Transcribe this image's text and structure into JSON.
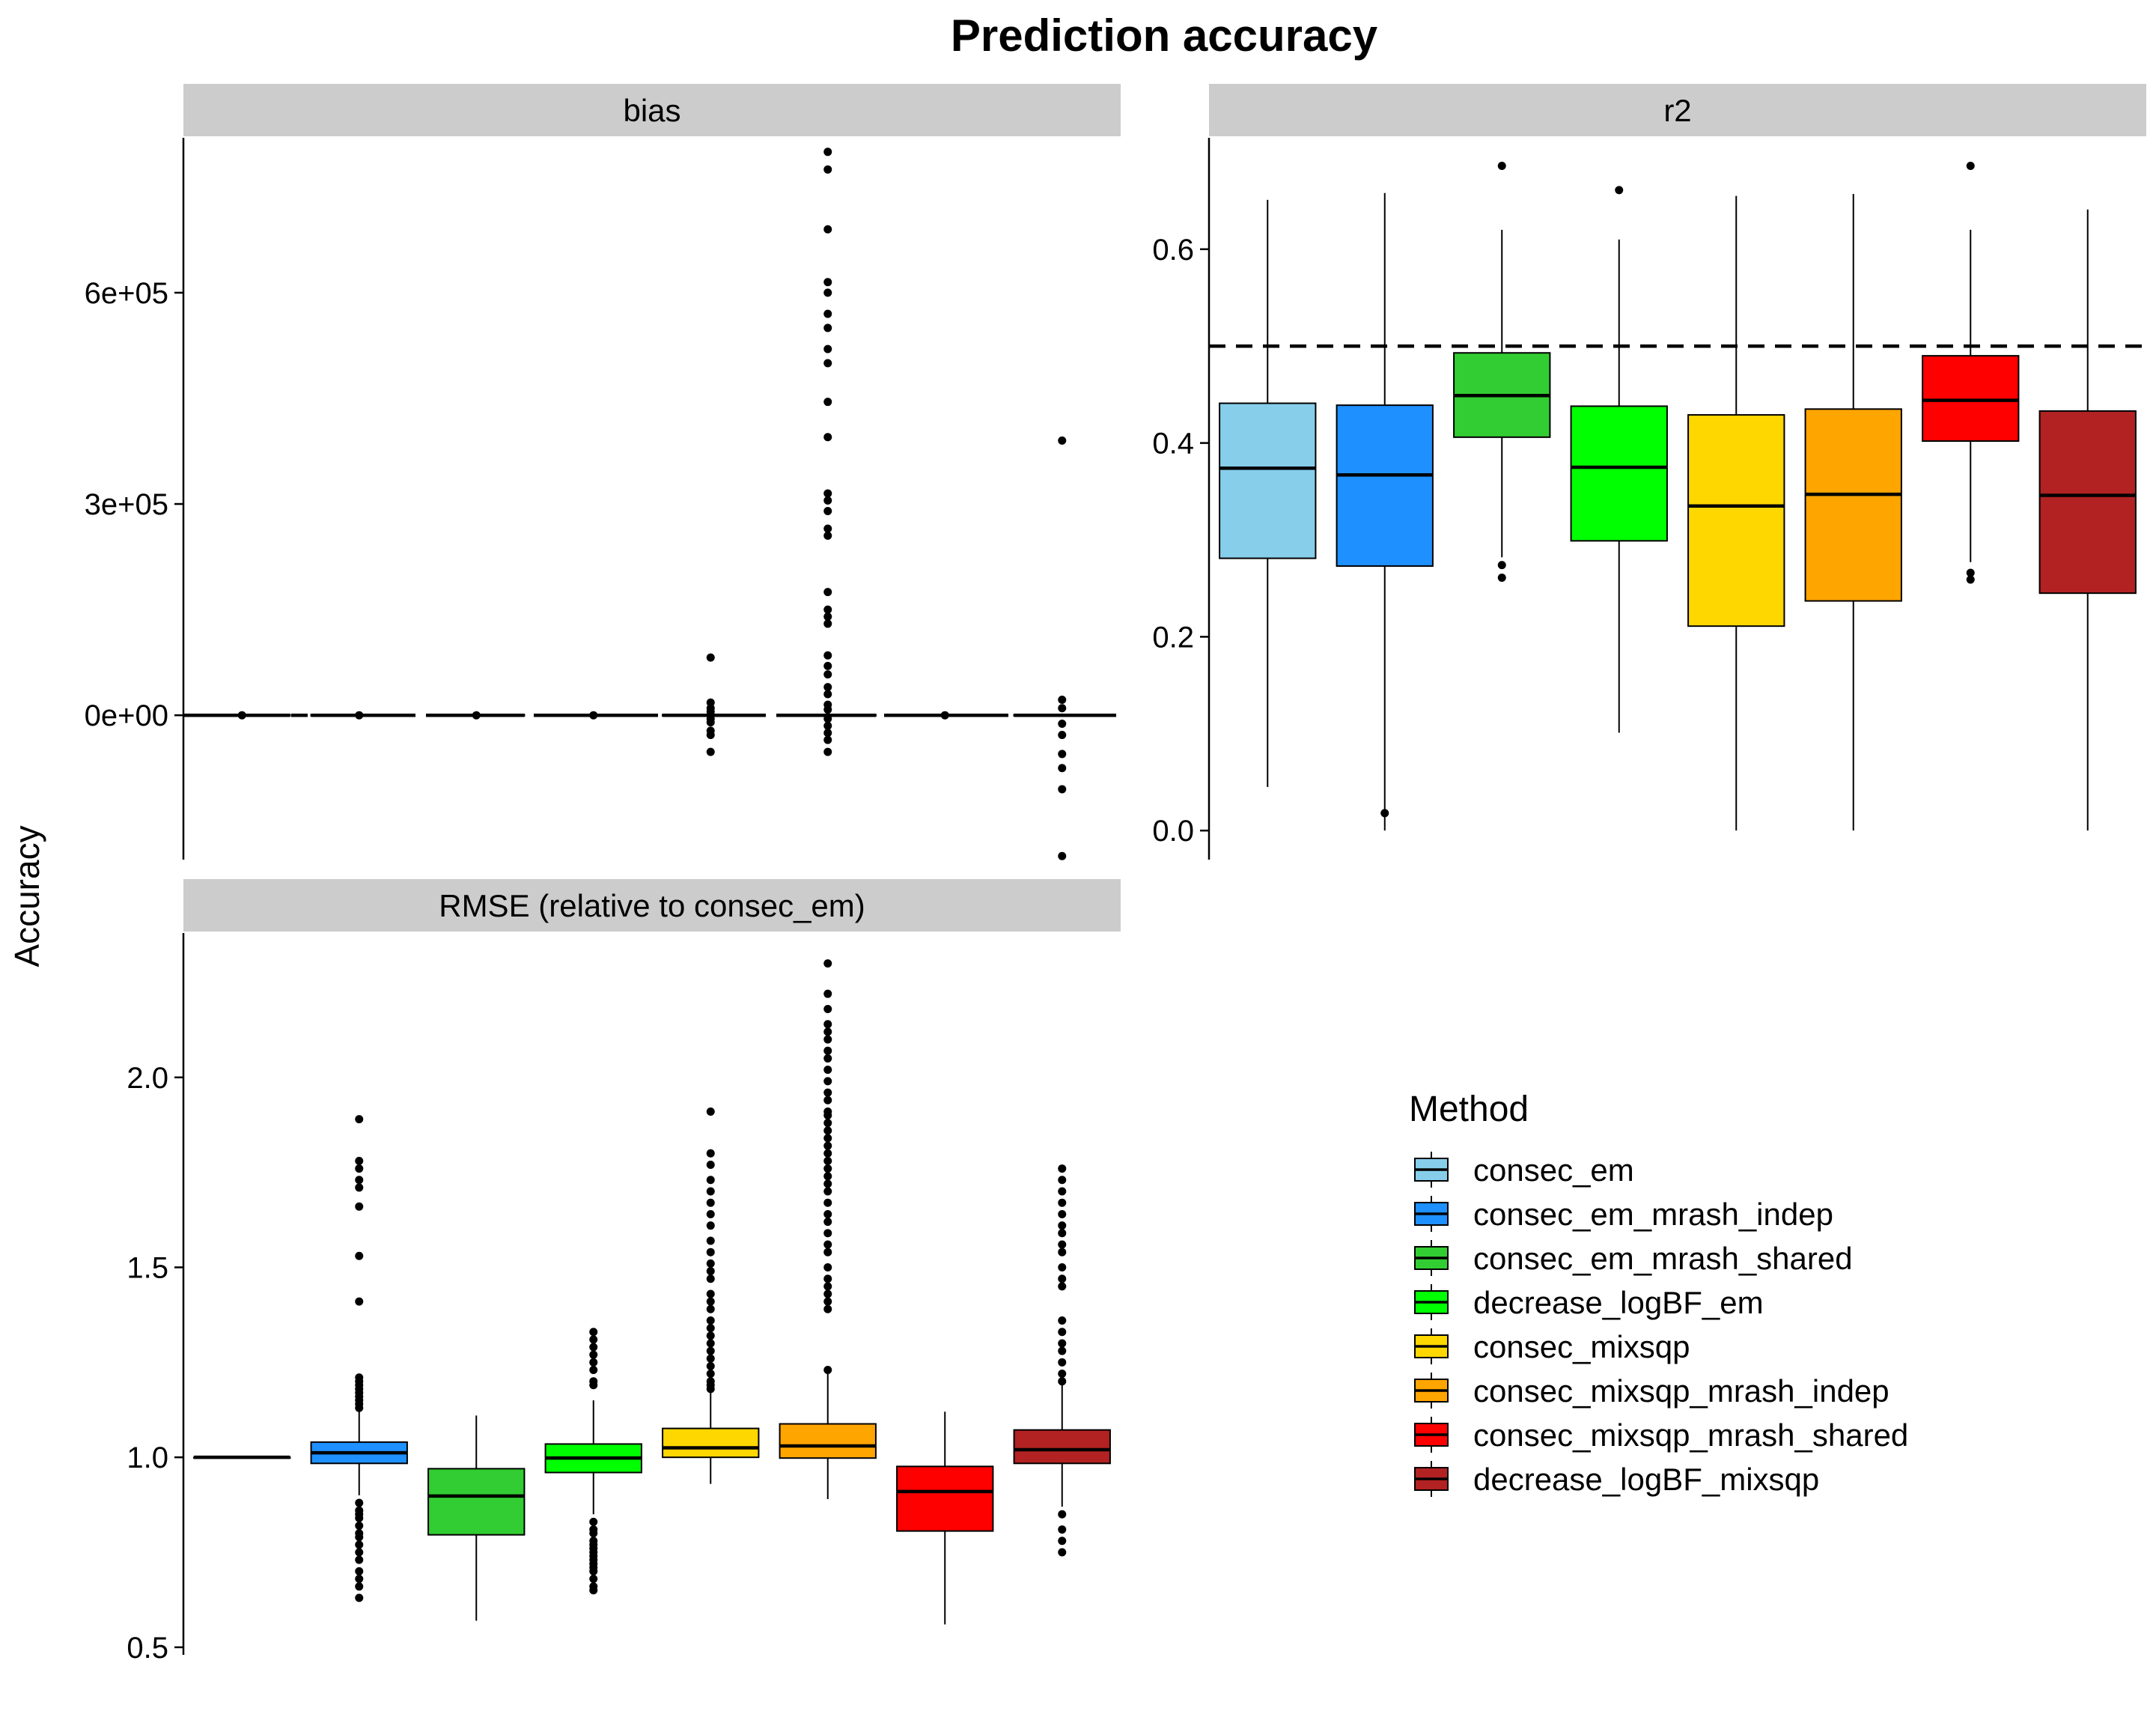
{
  "chart_data": {
    "type": "boxplot",
    "title": "Prediction accuracy",
    "ylabel": "Accuracy",
    "legend": {
      "title": "Method",
      "position": "bottom-right",
      "items": [
        {
          "name": "consec_em",
          "color": "#87CEEB"
        },
        {
          "name": "consec_em_mrash_indep",
          "color": "#1E90FF"
        },
        {
          "name": "consec_em_mrash_shared",
          "color": "#32CD32"
        },
        {
          "name": "decrease_logBF_em",
          "color": "#00FF00"
        },
        {
          "name": "consec_mixsqp",
          "color": "#FFD700"
        },
        {
          "name": "consec_mixsqp_mrash_indep",
          "color": "#FFA500"
        },
        {
          "name": "consec_mixsqp_mrash_shared",
          "color": "#FF0000"
        },
        {
          "name": "decrease_logBF_mixsqp",
          "color": "#B22222"
        }
      ]
    },
    "panels": [
      {
        "id": "bias",
        "strip_label": "bias",
        "ylim": [
          -205000,
          820000
        ],
        "ticks": [
          0,
          300000,
          600000
        ],
        "tick_labels": [
          "0e+00",
          "3e+05",
          "6e+05"
        ],
        "reference_line": 0,
        "boxes": [
          {
            "q1": -900,
            "median": 0,
            "q3": 900,
            "whisker_low": -2500,
            "whisker_high": 2500,
            "outliers": [
              0
            ]
          },
          {
            "q1": -900,
            "median": 0,
            "q3": 900,
            "whisker_low": -2500,
            "whisker_high": 2500,
            "outliers": [
              0
            ]
          },
          {
            "q1": -900,
            "median": 0,
            "q3": 900,
            "whisker_low": -2500,
            "whisker_high": 2500,
            "outliers": [
              0
            ]
          },
          {
            "q1": -900,
            "median": 0,
            "q3": 900,
            "whisker_low": -2500,
            "whisker_high": 2500,
            "outliers": [
              0
            ]
          },
          {
            "q1": -900,
            "median": 0,
            "q3": 900,
            "whisker_low": -2500,
            "whisker_high": 2500,
            "outliers": [
              82000,
              18000,
              10000,
              5000,
              -5000,
              -10000,
              -22000,
              -28000,
              -52000
            ]
          },
          {
            "q1": -900,
            "median": 0,
            "q3": 900,
            "whisker_low": -2500,
            "whisker_high": 2500,
            "outliers": [
              800000,
              775000,
              690000,
              615000,
              600000,
              570000,
              550000,
              520000,
              500000,
              445000,
              395000,
              315000,
              305000,
              290000,
              265000,
              255000,
              175000,
              150000,
              140000,
              130000,
              85000,
              70000,
              58000,
              40000,
              30000,
              15000,
              8000,
              -5000,
              -15000,
              -25000,
              -35000,
              -52000
            ]
          },
          {
            "q1": -900,
            "median": 0,
            "q3": 900,
            "whisker_low": -2500,
            "whisker_high": 2500,
            "outliers": [
              0
            ]
          },
          {
            "q1": -900,
            "median": 0,
            "q3": 900,
            "whisker_low": -2500,
            "whisker_high": 2500,
            "outliers": [
              390000,
              22000,
              10000,
              -12000,
              -28000,
              -55000,
              -75000,
              -105000,
              -200000
            ]
          }
        ]
      },
      {
        "id": "r2",
        "strip_label": "r2",
        "ylim": [
          -0.03,
          0.715
        ],
        "ticks": [
          0.0,
          0.2,
          0.4,
          0.6
        ],
        "tick_labels": [
          "0.0",
          "0.2",
          "0.4",
          "0.6"
        ],
        "reference_line": 0.5,
        "boxes": [
          {
            "q1": 0.281,
            "median": 0.374,
            "q3": 0.441,
            "whisker_low": 0.045,
            "whisker_high": 0.651,
            "outliers": []
          },
          {
            "q1": 0.273,
            "median": 0.367,
            "q3": 0.439,
            "whisker_low": 0.0,
            "whisker_high": 0.658,
            "outliers": [
              0.018
            ]
          },
          {
            "q1": 0.406,
            "median": 0.449,
            "q3": 0.493,
            "whisker_low": 0.282,
            "whisker_high": 0.62,
            "outliers": [
              0.686,
              0.274,
              0.261
            ]
          },
          {
            "q1": 0.299,
            "median": 0.375,
            "q3": 0.438,
            "whisker_low": 0.101,
            "whisker_high": 0.61,
            "outliers": [
              0.661
            ]
          },
          {
            "q1": 0.211,
            "median": 0.335,
            "q3": 0.429,
            "whisker_low": 0.0,
            "whisker_high": 0.655,
            "outliers": []
          },
          {
            "q1": 0.237,
            "median": 0.347,
            "q3": 0.435,
            "whisker_low": 0.0,
            "whisker_high": 0.657,
            "outliers": []
          },
          {
            "q1": 0.402,
            "median": 0.444,
            "q3": 0.49,
            "whisker_low": 0.277,
            "whisker_high": 0.62,
            "outliers": [
              0.686,
              0.266,
              0.259
            ]
          },
          {
            "q1": 0.245,
            "median": 0.346,
            "q3": 0.433,
            "whisker_low": 0.0,
            "whisker_high": 0.641,
            "outliers": []
          }
        ]
      },
      {
        "id": "rmse",
        "strip_label": "RMSE (relative to consec_em)",
        "ylim": [
          0.48,
          2.38
        ],
        "ticks": [
          0.5,
          1.0,
          1.5,
          2.0
        ],
        "tick_labels": [
          "0.5",
          "1.0",
          "1.5",
          "2.0"
        ],
        "reference_line": null,
        "boxes": [
          {
            "q1": 1.0,
            "median": 1.0,
            "q3": 1.0,
            "whisker_low": 1.0,
            "whisker_high": 1.0,
            "outliers": []
          },
          {
            "q1": 0.984,
            "median": 1.012,
            "q3": 1.04,
            "whisker_low": 0.9,
            "whisker_high": 1.12,
            "outliers": [
              1.89,
              1.78,
              1.76,
              1.73,
              1.71,
              1.66,
              1.53,
              1.41,
              1.21,
              1.2,
              1.19,
              1.18,
              1.17,
              1.16,
              1.15,
              1.14,
              1.13,
              0.88,
              0.86,
              0.85,
              0.84,
              0.82,
              0.8,
              0.79,
              0.77,
              0.75,
              0.73,
              0.7,
              0.68,
              0.66,
              0.63
            ]
          },
          {
            "q1": 0.796,
            "median": 0.898,
            "q3": 0.97,
            "whisker_low": 0.57,
            "whisker_high": 1.11,
            "outliers": []
          },
          {
            "q1": 0.96,
            "median": 0.998,
            "q3": 1.035,
            "whisker_low": 0.85,
            "whisker_high": 1.15,
            "outliers": [
              1.33,
              1.31,
              1.29,
              1.27,
              1.25,
              1.23,
              1.2,
              1.19,
              0.83,
              0.81,
              0.8,
              0.78,
              0.77,
              0.76,
              0.75,
              0.74,
              0.73,
              0.72,
              0.71,
              0.7,
              0.68,
              0.66,
              0.65
            ]
          },
          {
            "q1": 1.0,
            "median": 1.025,
            "q3": 1.076,
            "whisker_low": 0.93,
            "whisker_high": 1.19,
            "outliers": [
              1.91,
              1.8,
              1.77,
              1.73,
              1.7,
              1.67,
              1.64,
              1.61,
              1.57,
              1.54,
              1.51,
              1.49,
              1.47,
              1.43,
              1.41,
              1.39,
              1.36,
              1.34,
              1.32,
              1.3,
              1.28,
              1.26,
              1.24,
              1.22,
              1.2,
              1.19,
              1.18
            ]
          },
          {
            "q1": 0.998,
            "median": 1.03,
            "q3": 1.088,
            "whisker_low": 0.89,
            "whisker_high": 1.22,
            "outliers": [
              2.3,
              2.22,
              2.18,
              2.14,
              2.12,
              2.1,
              2.07,
              2.05,
              2.02,
              1.99,
              1.96,
              1.94,
              1.91,
              1.9,
              1.88,
              1.86,
              1.84,
              1.82,
              1.8,
              1.78,
              1.76,
              1.74,
              1.72,
              1.7,
              1.67,
              1.64,
              1.62,
              1.59,
              1.56,
              1.54,
              1.5,
              1.47,
              1.45,
              1.43,
              1.41,
              1.39,
              1.23
            ]
          },
          {
            "q1": 0.806,
            "median": 0.91,
            "q3": 0.976,
            "whisker_low": 0.56,
            "whisker_high": 1.12,
            "outliers": []
          },
          {
            "q1": 0.984,
            "median": 1.02,
            "q3": 1.072,
            "whisker_low": 0.87,
            "whisker_high": 1.19,
            "outliers": [
              1.76,
              1.73,
              1.7,
              1.67,
              1.64,
              1.61,
              1.59,
              1.56,
              1.54,
              1.5,
              1.47,
              1.45,
              1.36,
              1.33,
              1.3,
              1.28,
              1.25,
              1.22,
              1.2,
              0.85,
              0.81,
              0.78,
              0.75
            ]
          }
        ]
      }
    ]
  }
}
